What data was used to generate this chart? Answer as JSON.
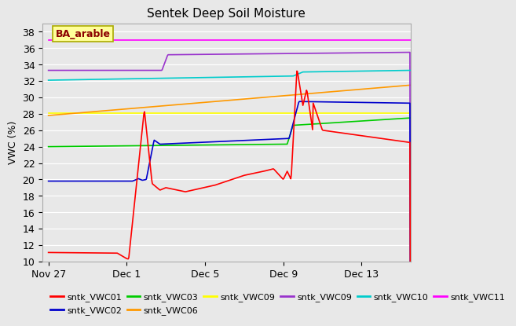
{
  "title": "Sentek Deep Soil Moisture",
  "ylabel": "VWC (%)",
  "ylim": [
    10,
    39
  ],
  "yticks": [
    10,
    12,
    14,
    16,
    18,
    20,
    22,
    24,
    26,
    28,
    30,
    32,
    34,
    36,
    38
  ],
  "plot_bg": "#e8e8e8",
  "fig_bg": "#e8e8e8",
  "annotation": "BA_arable",
  "x_tick_labels": [
    "Nov 27",
    "Dec 1",
    "Dec 5",
    "Dec 9",
    "Dec 13"
  ],
  "x_tick_positions": [
    0,
    4,
    8,
    12,
    16
  ],
  "xlim": [
    -0.3,
    18.5
  ],
  "legend_row1": [
    {
      "label": "sntk_VWC01",
      "color": "#ff0000"
    },
    {
      "label": "sntk_VWC02",
      "color": "#0000cc"
    },
    {
      "label": "sntk_VWC03",
      "color": "#00cc00"
    },
    {
      "label": "sntk_VWC06",
      "color": "#ff9900"
    },
    {
      "label": "sntk_VWC09",
      "color": "#ffff00"
    },
    {
      "label": "sntk_VWC09",
      "color": "#9933cc"
    }
  ],
  "legend_row2": [
    {
      "label": "sntk_VWC10",
      "color": "#00cccc"
    },
    {
      "label": "sntk_VWC11",
      "color": "#ff00ff"
    }
  ]
}
